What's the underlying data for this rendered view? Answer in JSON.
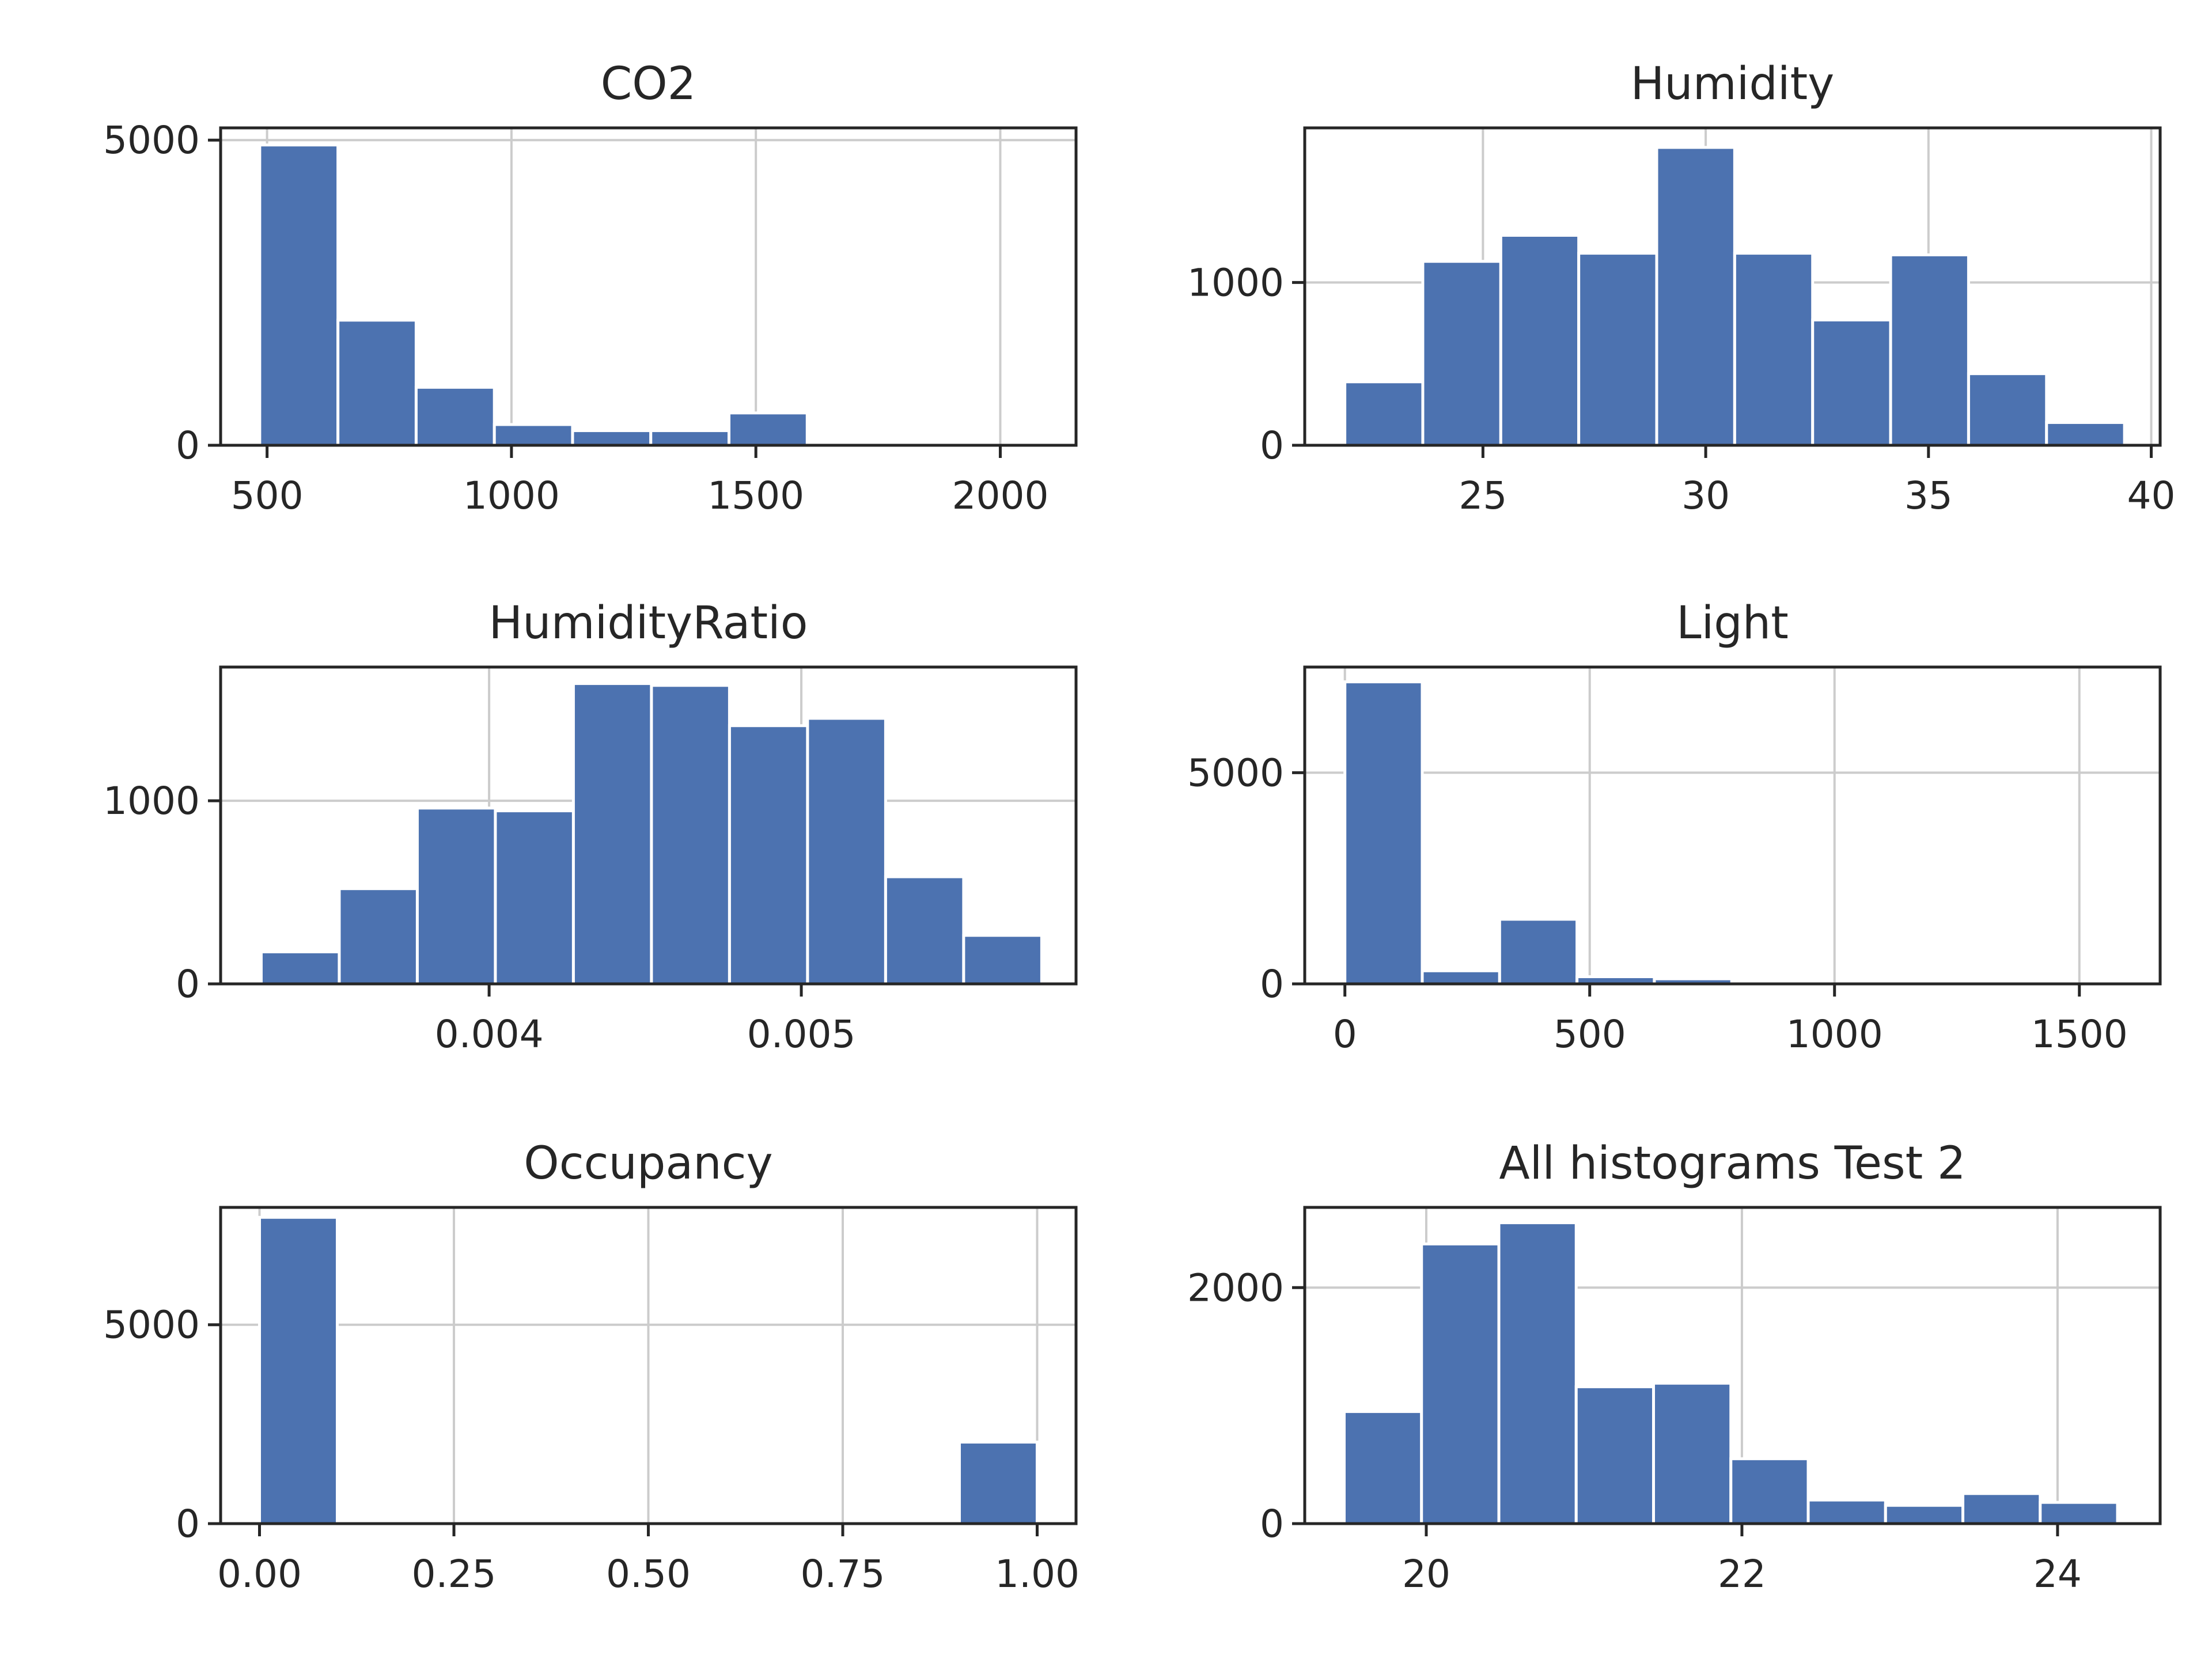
{
  "colors": {
    "bar": "#4C72B0",
    "bar_edge": "#ffffff",
    "grid": "#cccccc",
    "axes": "#262626",
    "background": "#ffffff"
  },
  "chart_data": [
    {
      "type": "bar",
      "title": "CO2",
      "xlabel": "",
      "ylabel": "",
      "grid": true,
      "xlim": [
        405,
        2155
      ],
      "ylim": [
        0,
        5200
      ],
      "xticks": [
        {
          "value": 500,
          "label": "500"
        },
        {
          "value": 1000,
          "label": "1000"
        },
        {
          "value": 1500,
          "label": "1500"
        },
        {
          "value": 2000,
          "label": "2000"
        }
      ],
      "yticks": [
        {
          "value": 0,
          "label": "0"
        },
        {
          "value": 5000,
          "label": "5000"
        }
      ],
      "bins": [
        {
          "start": 485,
          "end": 645,
          "count": 4920
        },
        {
          "start": 645,
          "end": 805,
          "count": 2050
        },
        {
          "start": 805,
          "end": 965,
          "count": 950
        },
        {
          "start": 965,
          "end": 1125,
          "count": 340
        },
        {
          "start": 1125,
          "end": 1285,
          "count": 240
        },
        {
          "start": 1285,
          "end": 1445,
          "count": 240
        },
        {
          "start": 1445,
          "end": 1605,
          "count": 530
        },
        {
          "start": 1605,
          "end": 1765,
          "count": 0
        },
        {
          "start": 1765,
          "end": 1925,
          "count": 0
        },
        {
          "start": 1925,
          "end": 2085,
          "count": 0
        }
      ]
    },
    {
      "type": "bar",
      "title": "Humidity",
      "xlabel": "",
      "ylabel": "",
      "grid": true,
      "xlim": [
        21,
        40.2
      ],
      "ylim": [
        0,
        1950
      ],
      "xticks": [
        {
          "value": 25,
          "label": "25"
        },
        {
          "value": 30,
          "label": "30"
        },
        {
          "value": 35,
          "label": "35"
        },
        {
          "value": 40,
          "label": "40"
        }
      ],
      "yticks": [
        {
          "value": 0,
          "label": "0"
        },
        {
          "value": 1000,
          "label": "1000"
        }
      ],
      "bins": [
        {
          "start": 21.9,
          "end": 23.65,
          "count": 390
        },
        {
          "start": 23.65,
          "end": 25.4,
          "count": 1130
        },
        {
          "start": 25.4,
          "end": 27.15,
          "count": 1290
        },
        {
          "start": 27.15,
          "end": 28.9,
          "count": 1180
        },
        {
          "start": 28.9,
          "end": 30.65,
          "count": 1830
        },
        {
          "start": 30.65,
          "end": 32.4,
          "count": 1180
        },
        {
          "start": 32.4,
          "end": 34.15,
          "count": 770
        },
        {
          "start": 34.15,
          "end": 35.9,
          "count": 1170
        },
        {
          "start": 35.9,
          "end": 37.65,
          "count": 440
        },
        {
          "start": 37.65,
          "end": 39.4,
          "count": 140
        }
      ]
    },
    {
      "type": "bar",
      "title": "HumidityRatio",
      "xlabel": "",
      "ylabel": "",
      "grid": true,
      "xlim": [
        0.00314,
        0.00588
      ],
      "ylim": [
        0,
        1730
      ],
      "xticks": [
        {
          "value": 0.004,
          "label": "0.004"
        },
        {
          "value": 0.005,
          "label": "0.005"
        }
      ],
      "yticks": [
        {
          "value": 0,
          "label": "0"
        },
        {
          "value": 1000,
          "label": "1000"
        }
      ],
      "bins": [
        {
          "start": 0.00327,
          "end": 0.00352,
          "count": 175
        },
        {
          "start": 0.00352,
          "end": 0.00377,
          "count": 520
        },
        {
          "start": 0.00377,
          "end": 0.00402,
          "count": 960
        },
        {
          "start": 0.00402,
          "end": 0.00427,
          "count": 945
        },
        {
          "start": 0.00427,
          "end": 0.00452,
          "count": 1640
        },
        {
          "start": 0.00452,
          "end": 0.00477,
          "count": 1630
        },
        {
          "start": 0.00477,
          "end": 0.00502,
          "count": 1410
        },
        {
          "start": 0.00502,
          "end": 0.00527,
          "count": 1450
        },
        {
          "start": 0.00527,
          "end": 0.00552,
          "count": 585
        },
        {
          "start": 0.00552,
          "end": 0.00577,
          "count": 265
        }
      ]
    },
    {
      "type": "bar",
      "title": "Light",
      "xlabel": "",
      "ylabel": "",
      "grid": true,
      "xlim": [
        -82,
        1665
      ],
      "ylim": [
        0,
        7500
      ],
      "xticks": [
        {
          "value": 0,
          "label": "0"
        },
        {
          "value": 500,
          "label": "500"
        },
        {
          "value": 1000,
          "label": "1000"
        },
        {
          "value": 1500,
          "label": "1500"
        }
      ],
      "yticks": [
        {
          "value": 0,
          "label": "0"
        },
        {
          "value": 5000,
          "label": "5000"
        }
      ],
      "bins": [
        {
          "start": 0,
          "end": 158,
          "count": 7150
        },
        {
          "start": 158,
          "end": 316,
          "count": 310
        },
        {
          "start": 316,
          "end": 474,
          "count": 1530
        },
        {
          "start": 474,
          "end": 632,
          "count": 170
        },
        {
          "start": 632,
          "end": 790,
          "count": 120
        },
        {
          "start": 790,
          "end": 948,
          "count": 0
        },
        {
          "start": 948,
          "end": 1106,
          "count": 0
        },
        {
          "start": 1106,
          "end": 1264,
          "count": 0
        },
        {
          "start": 1264,
          "end": 1422,
          "count": 0
        },
        {
          "start": 1422,
          "end": 1580,
          "count": 0
        }
      ]
    },
    {
      "type": "bar",
      "title": "Occupancy",
      "xlabel": "",
      "ylabel": "",
      "grid": true,
      "xlim": [
        -0.05,
        1.05
      ],
      "ylim": [
        0,
        7950
      ],
      "xticks": [
        {
          "value": 0,
          "label": "0.00"
        },
        {
          "value": 0.25,
          "label": "0.25"
        },
        {
          "value": 0.5,
          "label": "0.50"
        },
        {
          "value": 0.75,
          "label": "0.75"
        },
        {
          "value": 1,
          "label": "1.00"
        }
      ],
      "yticks": [
        {
          "value": 0,
          "label": "0"
        },
        {
          "value": 5000,
          "label": "5000"
        }
      ],
      "bins": [
        {
          "start": 0,
          "end": 0.1,
          "count": 7700
        },
        {
          "start": 0.1,
          "end": 0.2,
          "count": 0
        },
        {
          "start": 0.2,
          "end": 0.3,
          "count": 0
        },
        {
          "start": 0.3,
          "end": 0.4,
          "count": 0
        },
        {
          "start": 0.4,
          "end": 0.5,
          "count": 0
        },
        {
          "start": 0.5,
          "end": 0.6,
          "count": 0
        },
        {
          "start": 0.6,
          "end": 0.7,
          "count": 0
        },
        {
          "start": 0.7,
          "end": 0.8,
          "count": 0
        },
        {
          "start": 0.8,
          "end": 0.9,
          "count": 0
        },
        {
          "start": 0.9,
          "end": 1.0,
          "count": 2050
        }
      ]
    },
    {
      "type": "bar",
      "title": "All histograms Test 2",
      "xlabel": "",
      "ylabel": "",
      "grid": true,
      "xlim": [
        19.23,
        24.65
      ],
      "ylim": [
        0,
        2680
      ],
      "xticks": [
        {
          "value": 20,
          "label": "20"
        },
        {
          "value": 22,
          "label": "22"
        },
        {
          "value": 24,
          "label": "24"
        }
      ],
      "yticks": [
        {
          "value": 0,
          "label": "0"
        },
        {
          "value": 2000,
          "label": "2000"
        }
      ],
      "bins": [
        {
          "start": 19.48,
          "end": 19.97,
          "count": 950
        },
        {
          "start": 19.97,
          "end": 20.46,
          "count": 2370
        },
        {
          "start": 20.46,
          "end": 20.95,
          "count": 2550
        },
        {
          "start": 20.95,
          "end": 21.44,
          "count": 1160
        },
        {
          "start": 21.44,
          "end": 21.93,
          "count": 1190
        },
        {
          "start": 21.93,
          "end": 22.42,
          "count": 550
        },
        {
          "start": 22.42,
          "end": 22.91,
          "count": 200
        },
        {
          "start": 22.91,
          "end": 23.4,
          "count": 155
        },
        {
          "start": 23.4,
          "end": 23.89,
          "count": 255
        },
        {
          "start": 23.89,
          "end": 24.38,
          "count": 180
        }
      ]
    }
  ]
}
